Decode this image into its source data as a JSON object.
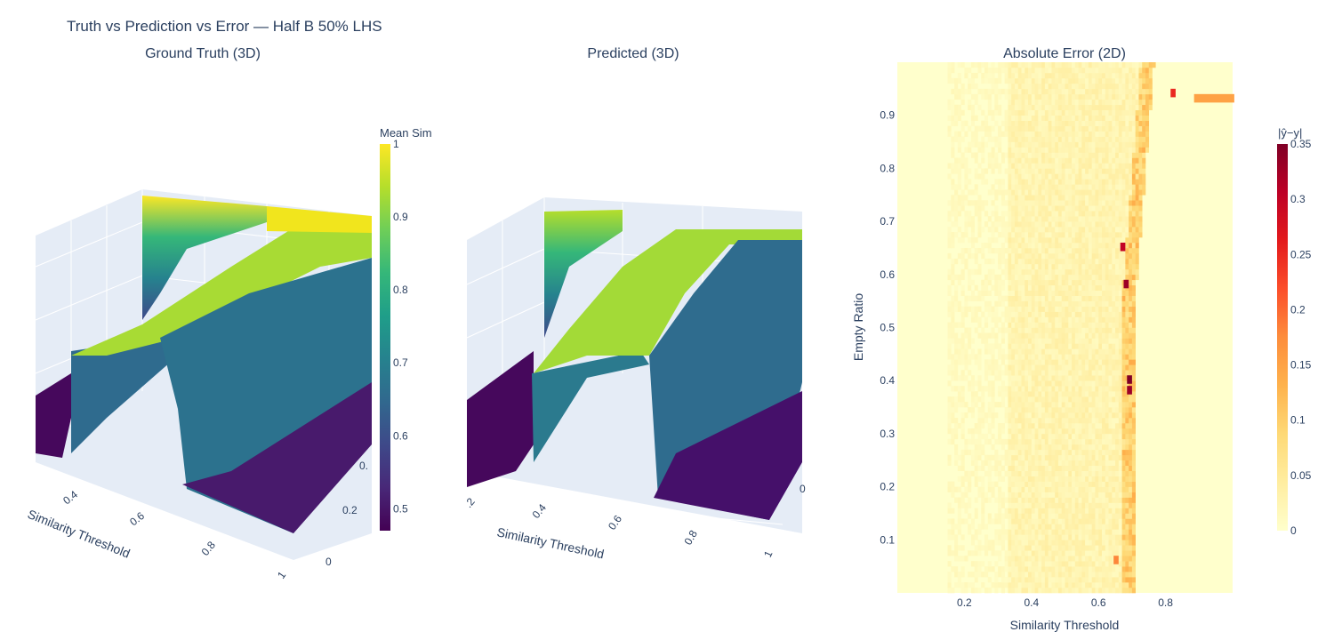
{
  "figure": {
    "title": "Truth vs Prediction vs Error — Half B 50% LHS"
  },
  "chart_data": [
    {
      "id": "ground_truth",
      "type": "surface-3d",
      "title": "Ground Truth (3D)",
      "xlabel": "Similarity Threshold",
      "x_ticks": [
        "0.4",
        "0.6",
        "0.8",
        "1"
      ],
      "y_ticks": [
        "0",
        "0.2",
        "0."
      ],
      "zlabel": "",
      "z_range": [
        0.48,
        1.0
      ],
      "colorscale": "viridis",
      "description_levels": {
        "low": 0.5,
        "ridge": 0.9,
        "high": 1.0
      }
    },
    {
      "id": "predicted",
      "type": "surface-3d",
      "title": "Predicted (3D)",
      "xlabel": "Similarity Threshold",
      "x_ticks": [
        ".2",
        "0.4",
        "0.6",
        "0.8",
        "1"
      ],
      "y_ticks": [
        "0"
      ],
      "z_range": [
        0.48,
        1.0
      ],
      "colorscale": "viridis"
    },
    {
      "id": "absolute_error",
      "type": "heatmap",
      "title": "Absolute Error (2D)",
      "xlabel": "Similarity Threshold",
      "ylabel": "Empty Ratio",
      "x_range": [
        0.0,
        1.0
      ],
      "y_range": [
        0.0,
        1.0
      ],
      "x_ticks": [
        0.2,
        0.4,
        0.6,
        0.8
      ],
      "y_ticks": [
        0.1,
        0.2,
        0.3,
        0.4,
        0.5,
        0.6,
        0.7,
        0.8,
        0.9
      ],
      "colorscale": "YlOrRd",
      "z_range": [
        0,
        0.35
      ],
      "hotspots": [
        {
          "x": 0.7,
          "y": 0.38,
          "value": 0.33
        },
        {
          "x": 0.7,
          "y": 0.4,
          "value": 0.35
        },
        {
          "x": 0.68,
          "y": 0.65,
          "value": 0.3
        },
        {
          "x": 0.69,
          "y": 0.58,
          "value": 0.33
        },
        {
          "x": 0.83,
          "y": 0.94,
          "value": 0.25
        },
        {
          "x": 0.9,
          "y": 0.93,
          "value": 0.15
        },
        {
          "x": 0.66,
          "y": 0.06,
          "value": 0.18
        }
      ]
    }
  ],
  "colorbars": [
    {
      "id": "mean_sim",
      "title": "Mean Sim",
      "ticks": [
        "1",
        "0.9",
        "0.8",
        "0.7",
        "0.6",
        "0.5"
      ],
      "values": [
        1,
        0.9,
        0.8,
        0.7,
        0.6,
        0.5
      ],
      "range": [
        0.47,
        1.0
      ]
    },
    {
      "id": "abs_err",
      "title": "|ŷ−y|",
      "ticks": [
        "0.35",
        "0.3",
        "0.25",
        "0.2",
        "0.15",
        "0.1",
        "0.05",
        "0"
      ],
      "values": [
        0.35,
        0.3,
        0.25,
        0.2,
        0.15,
        0.1,
        0.05,
        0
      ],
      "range": [
        0,
        0.35
      ]
    }
  ],
  "colors": {
    "viridis": [
      "#440154",
      "#482878",
      "#3e4989",
      "#31688e",
      "#26828e",
      "#1f9e89",
      "#35b779",
      "#6ece58",
      "#b5de2b",
      "#fde725"
    ],
    "ylorrd": [
      "#ffffcc",
      "#ffeda0",
      "#fed976",
      "#feb24c",
      "#fd8d3c",
      "#fc4e2a",
      "#e31a1c",
      "#bd0026",
      "#800026"
    ],
    "scene_bg": "#e5ecf6"
  }
}
